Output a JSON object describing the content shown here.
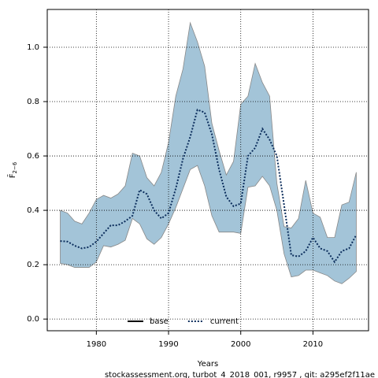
{
  "chart_data": {
    "type": "line",
    "xlabel": "Years",
    "ylabel": "F̄",
    "ylabel_subscript": "2−6",
    "footer": "stockassessment.org, turbot_4_2018_001, r9957 , git: a295ef2f11ae",
    "x": [
      1975,
      1976,
      1977,
      1978,
      1979,
      1980,
      1981,
      1982,
      1983,
      1984,
      1985,
      1986,
      1987,
      1988,
      1989,
      1990,
      1991,
      1992,
      1993,
      1994,
      1995,
      1996,
      1997,
      1998,
      1999,
      2000,
      2001,
      2002,
      2003,
      2004,
      2005,
      2006,
      2007,
      2008,
      2009,
      2010,
      2011,
      2012,
      2013,
      2014,
      2015,
      2016
    ],
    "series": [
      {
        "name": "current",
        "color": "#0b2d5c",
        "band_color": "#a3c4d8",
        "values": [
          0.287,
          0.285,
          0.27,
          0.26,
          0.265,
          0.285,
          0.315,
          0.345,
          0.345,
          0.36,
          0.38,
          0.475,
          0.46,
          0.4,
          0.37,
          0.39,
          0.48,
          0.59,
          0.67,
          0.77,
          0.76,
          0.68,
          0.55,
          0.45,
          0.415,
          0.425,
          0.6,
          0.63,
          0.7,
          0.66,
          0.6,
          0.42,
          0.235,
          0.23,
          0.25,
          0.3,
          0.26,
          0.25,
          0.21,
          0.25,
          0.26,
          0.31
        ],
        "upper": [
          0.4,
          0.39,
          0.36,
          0.35,
          0.39,
          0.44,
          0.455,
          0.445,
          0.46,
          0.49,
          0.61,
          0.6,
          0.52,
          0.49,
          0.54,
          0.65,
          0.82,
          0.92,
          1.09,
          1.02,
          0.93,
          0.72,
          0.62,
          0.53,
          0.58,
          0.79,
          0.82,
          0.94,
          0.87,
          0.82,
          0.5,
          0.34,
          0.335,
          0.37,
          0.51,
          0.39,
          0.375,
          0.3,
          0.3,
          0.42,
          0.43,
          0.54
        ],
        "lower": [
          0.205,
          0.2,
          0.19,
          0.19,
          0.19,
          0.21,
          0.27,
          0.265,
          0.275,
          0.29,
          0.37,
          0.35,
          0.295,
          0.275,
          0.3,
          0.35,
          0.41,
          0.48,
          0.55,
          0.565,
          0.49,
          0.38,
          0.32,
          0.32,
          0.32,
          0.315,
          0.485,
          0.49,
          0.525,
          0.49,
          0.4,
          0.24,
          0.155,
          0.16,
          0.18,
          0.18,
          0.17,
          0.16,
          0.14,
          0.13,
          0.15,
          0.175
        ]
      }
    ],
    "legend": [
      {
        "name": "base",
        "color": "#000000",
        "dash": "solid"
      },
      {
        "name": "current",
        "color": "#0b2d5c",
        "dash": "dotted"
      }
    ],
    "xlim": [
      1973.2,
      2017.7
    ],
    "ylim": [
      -0.043,
      1.139
    ],
    "xticks": [
      1980,
      1990,
      2000,
      2010
    ],
    "yticks": [
      {
        "value": 0,
        "label": "0.0"
      },
      {
        "value": 0.2,
        "label": "0.2"
      },
      {
        "value": 0.4,
        "label": "0.4"
      },
      {
        "value": 0.6,
        "label": "0.6"
      },
      {
        "value": 0.8,
        "label": "0.8"
      },
      {
        "value": 1.0,
        "label": "1.0"
      }
    ],
    "grid": true
  }
}
